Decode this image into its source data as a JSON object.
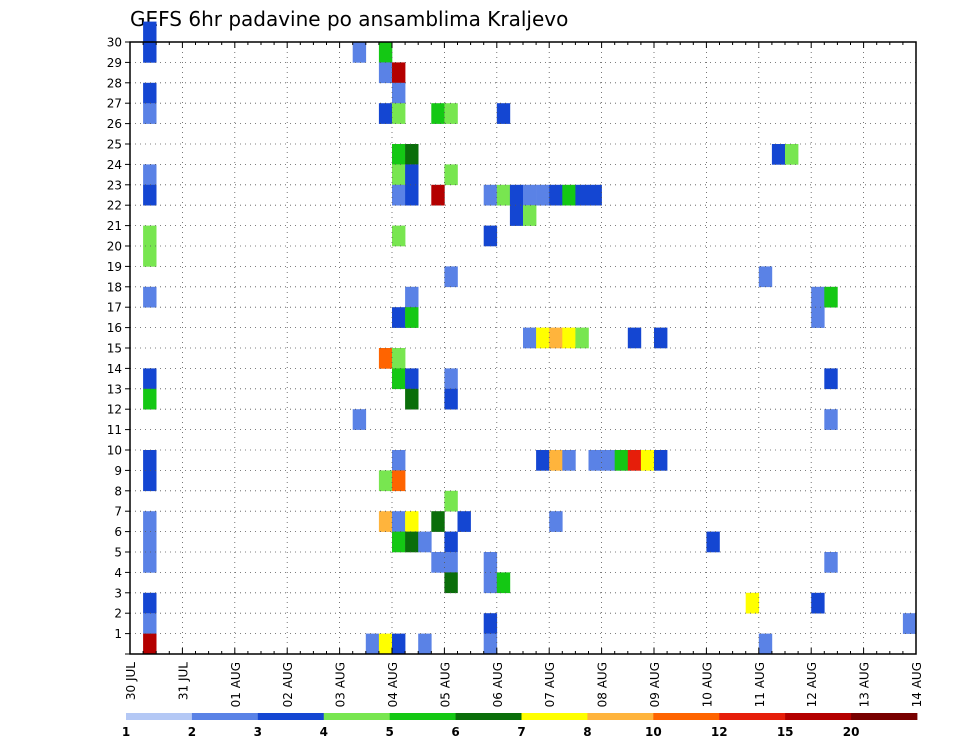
{
  "chart_data": {
    "type": "heatmap",
    "title": "GEFS 6hr padavine po ansamblima Kraljevo",
    "x_range": [
      "2024-07-30T00:00",
      "2024-08-14T00:00"
    ],
    "x_step_hours": 6,
    "x_ticks": [
      "30 JUL",
      "31 JUL",
      "01 AUG",
      "02 AUG",
      "03 AUG",
      "04 AUG",
      "05 AUG",
      "06 AUG",
      "07 AUG",
      "08 AUG",
      "09 AUG",
      "10 AUG",
      "11 AUG",
      "12 AUG",
      "13 AUG",
      "14 AUG"
    ],
    "y_ticks": [
      "1",
      "2",
      "3",
      "4",
      "5",
      "6",
      "7",
      "8",
      "9",
      "10",
      "11",
      "12",
      "13",
      "14",
      "15",
      "16",
      "17",
      "18",
      "19",
      "20",
      "21",
      "22",
      "23",
      "24",
      "25",
      "26",
      "27",
      "28",
      "29",
      "30"
    ],
    "y_range": [
      0,
      30
    ],
    "grid": true,
    "colorbar": {
      "placement": "bottom",
      "labels": [
        "1",
        "2",
        "3",
        "4",
        "5",
        "6",
        "7",
        "8",
        "10",
        "12",
        "15",
        "20"
      ],
      "colors": [
        "#b4c8f5",
        "#5a82e6",
        "#1446d2",
        "#78e650",
        "#14c814",
        "#0a6e0a",
        "#ffff00",
        "#ffb43c",
        "#ff6400",
        "#e61e0a",
        "#b40000",
        "#780000"
      ]
    },
    "cells": [
      [
        1,
        30,
        2
      ],
      [
        1,
        29,
        2
      ],
      [
        1,
        27,
        2
      ],
      [
        1,
        26,
        1
      ],
      [
        1,
        23,
        1
      ],
      [
        1,
        22,
        2
      ],
      [
        1,
        20,
        3
      ],
      [
        1,
        19,
        3
      ],
      [
        1,
        17,
        1
      ],
      [
        1,
        13,
        2
      ],
      [
        1,
        12,
        4
      ],
      [
        1,
        9,
        2
      ],
      [
        1,
        8,
        2
      ],
      [
        1,
        6,
        1
      ],
      [
        1,
        5,
        1
      ],
      [
        1,
        4,
        1
      ],
      [
        1,
        2,
        2
      ],
      [
        1,
        1,
        1
      ],
      [
        1,
        0,
        10
      ],
      [
        17,
        29,
        1
      ],
      [
        19,
        29,
        4
      ],
      [
        19,
        28,
        1
      ],
      [
        20,
        28,
        10
      ],
      [
        20,
        27,
        1
      ],
      [
        19,
        26,
        2
      ],
      [
        20,
        26,
        3
      ],
      [
        23,
        26,
        4
      ],
      [
        24,
        26,
        3
      ],
      [
        28,
        26,
        2
      ],
      [
        20,
        24,
        4
      ],
      [
        21,
        24,
        5
      ],
      [
        20,
        23,
        3
      ],
      [
        21,
        23,
        2
      ],
      [
        24,
        23,
        3
      ],
      [
        20,
        22,
        1
      ],
      [
        21,
        22,
        2
      ],
      [
        23,
        22,
        10
      ],
      [
        27,
        22,
        1
      ],
      [
        28,
        22,
        3
      ],
      [
        29,
        22,
        2
      ],
      [
        30,
        22,
        1
      ],
      [
        31,
        22,
        1
      ],
      [
        32,
        22,
        2
      ],
      [
        33,
        22,
        4
      ],
      [
        34,
        22,
        2
      ],
      [
        35,
        22,
        2
      ],
      [
        29,
        21,
        2
      ],
      [
        30,
        21,
        3
      ],
      [
        20,
        20,
        3
      ],
      [
        27,
        20,
        2
      ],
      [
        24,
        18,
        1
      ],
      [
        21,
        17,
        1
      ],
      [
        20,
        16,
        2
      ],
      [
        21,
        16,
        4
      ],
      [
        30,
        15,
        1
      ],
      [
        31,
        15,
        6
      ],
      [
        32,
        15,
        7
      ],
      [
        33,
        15,
        6
      ],
      [
        34,
        15,
        3
      ],
      [
        38,
        15,
        2
      ],
      [
        40,
        15,
        2
      ],
      [
        19,
        14,
        8
      ],
      [
        20,
        14,
        3
      ],
      [
        20,
        13,
        4
      ],
      [
        21,
        13,
        2
      ],
      [
        24,
        13,
        1
      ],
      [
        21,
        12,
        5
      ],
      [
        24,
        12,
        2
      ],
      [
        17,
        11,
        1
      ],
      [
        20,
        9,
        1
      ],
      [
        31,
        9,
        2
      ],
      [
        32,
        9,
        7
      ],
      [
        33,
        9,
        1
      ],
      [
        35,
        9,
        1
      ],
      [
        36,
        9,
        1
      ],
      [
        37,
        9,
        4
      ],
      [
        38,
        9,
        9
      ],
      [
        39,
        9,
        6
      ],
      [
        40,
        9,
        2
      ],
      [
        19,
        8,
        3
      ],
      [
        20,
        8,
        8
      ],
      [
        24,
        7,
        3
      ],
      [
        19,
        6,
        7
      ],
      [
        20,
        6,
        1
      ],
      [
        21,
        6,
        6
      ],
      [
        23,
        6,
        5
      ],
      [
        25,
        6,
        2
      ],
      [
        32,
        6,
        1
      ],
      [
        20,
        5,
        4
      ],
      [
        21,
        5,
        5
      ],
      [
        22,
        5,
        1
      ],
      [
        24,
        5,
        2
      ],
      [
        23,
        4,
        1
      ],
      [
        24,
        4,
        1
      ],
      [
        27,
        4,
        1
      ],
      [
        24,
        3,
        5
      ],
      [
        27,
        3,
        1
      ],
      [
        28,
        3,
        4
      ],
      [
        27,
        1,
        2
      ],
      [
        18,
        0,
        1
      ],
      [
        19,
        0,
        6
      ],
      [
        20,
        0,
        2
      ],
      [
        22,
        0,
        1
      ],
      [
        27,
        0,
        1
      ],
      [
        49,
        24,
        2
      ],
      [
        50,
        24,
        3
      ],
      [
        48,
        18,
        1
      ],
      [
        52,
        17,
        1
      ],
      [
        53,
        17,
        4
      ],
      [
        52,
        16,
        1
      ],
      [
        53,
        13,
        2
      ],
      [
        53,
        11,
        1
      ],
      [
        44,
        5,
        2
      ],
      [
        53,
        4,
        1
      ],
      [
        47,
        2,
        6
      ],
      [
        52,
        2,
        2
      ],
      [
        59,
        1,
        1
      ],
      [
        48,
        0,
        1
      ]
    ]
  }
}
